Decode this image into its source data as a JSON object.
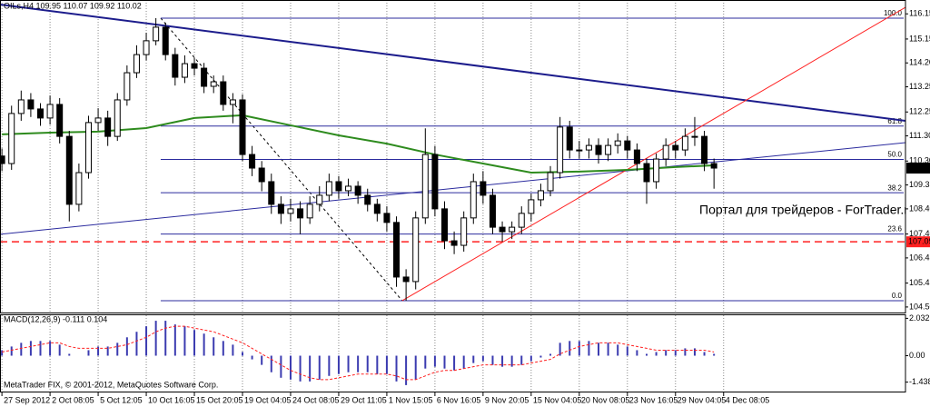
{
  "chart_data": {
    "type": "candlestick",
    "title": "OILs,H4 109.95 110.07 109.92 110.02",
    "xlim": [
      -0.2,
      93.9
    ],
    "xticks": [
      {
        "value": 0,
        "label": "27 Sep 2012"
      },
      {
        "value": 5,
        "label": "2 Oct 08:05"
      },
      {
        "value": 10,
        "label": "5 Oct 12:05"
      },
      {
        "value": 15,
        "label": "10 Oct 16:05"
      },
      {
        "value": 20,
        "label": "15 Oct 20:05"
      },
      {
        "value": 25,
        "label": "19 Oct 04:05"
      },
      {
        "value": 30,
        "label": "24 Oct 08:05"
      },
      {
        "value": 35,
        "label": "29 Oct 11:05"
      },
      {
        "value": 40,
        "label": "1 Nov 15:05"
      },
      {
        "value": 45,
        "label": "6 Nov 16:05"
      },
      {
        "value": 50,
        "label": "9 Nov 20:05"
      },
      {
        "value": 55,
        "label": "15 Nov 04:05"
      },
      {
        "value": 60,
        "label": "20 Nov 08:05"
      },
      {
        "value": 65,
        "label": "23 Nov 16:05"
      },
      {
        "value": 70,
        "label": "29 Nov 04:05"
      },
      {
        "value": 75,
        "label": "4 Dec 08:05"
      }
    ],
    "ylim": [
      104.28,
      116.7
    ],
    "yticks": [
      {
        "value": 104.5,
        "label": "104.50"
      },
      105.45,
      106.45,
      {
        "value": 107.4,
        "label": "107.40"
      },
      {
        "value": 108.4,
        "label": "108.40"
      },
      109.35,
      {
        "value": 110.3,
        "label": "110.30"
      },
      {
        "value": 111.3,
        "label": "111.30"
      },
      112.25,
      113.25,
      {
        "value": 114.2,
        "label": "114.20"
      },
      115.15,
      116.15
    ],
    "open": [
      110.5,
      110.2,
      112.19,
      112.73,
      112.37,
      112.01,
      112.55,
      111.28,
      108.58,
      109.84,
      111.83,
      112.01,
      111.28,
      112.73,
      113.81,
      114.53,
      115.08,
      115.62,
      114.53,
      113.63,
      114.17,
      113.99,
      113.27,
      113.45,
      112.55,
      112.73,
      110.56,
      110.02,
      109.48,
      108.58,
      108.22,
      108.4,
      108.04,
      108.58,
      108.94,
      109.48,
      109.12,
      109.3,
      108.94,
      108.58,
      108.22,
      107.86,
      105.69,
      105.51,
      108.04,
      110.56,
      108.4,
      107.13,
      106.95,
      108.04,
      109.48,
      108.94,
      107.67,
      107.49,
      107.67,
      108.22,
      108.76,
      109.12,
      109.84,
      111.65,
      110.74,
      110.74,
      110.92,
      110.56,
      110.92,
      111.1,
      110.74,
      110.2,
      109.48,
      110.38,
      110.92,
      110.74,
      111.28,
      111.28,
      110.2
    ],
    "high": [
      110.8,
      112.5,
      113.1,
      113.0,
      112.6,
      112.9,
      112.8,
      111.5,
      110.2,
      112.1,
      112.4,
      112.3,
      113.0,
      114.1,
      114.9,
      115.4,
      115.98,
      115.8,
      114.8,
      114.5,
      114.4,
      114.2,
      113.7,
      113.7,
      113.0,
      112.95,
      110.9,
      110.3,
      109.8,
      108.9,
      108.8,
      108.7,
      108.9,
      109.3,
      109.8,
      109.7,
      109.6,
      109.5,
      109.2,
      108.8,
      108.5,
      108.1,
      106.0,
      108.3,
      111.6,
      110.9,
      108.7,
      107.5,
      108.3,
      109.8,
      109.9,
      109.2,
      107.9,
      107.9,
      108.5,
      109.0,
      109.4,
      110.1,
      112.05,
      111.9,
      111.1,
      111.2,
      111.2,
      111.2,
      111.4,
      111.3,
      111.0,
      110.4,
      110.6,
      111.2,
      111.1,
      111.6,
      112.05,
      111.5,
      110.4
    ],
    "low": [
      109.9,
      109.95,
      111.9,
      112.05,
      111.7,
      111.75,
      111.0,
      107.9,
      108.3,
      109.6,
      111.5,
      110.9,
      111.1,
      112.5,
      113.6,
      114.3,
      114.9,
      114.3,
      113.3,
      113.4,
      113.7,
      113.0,
      113.0,
      112.3,
      111.8,
      110.3,
      109.7,
      109.1,
      108.2,
      107.8,
      107.9,
      107.4,
      107.8,
      108.3,
      108.7,
      108.8,
      108.9,
      108.6,
      108.3,
      107.9,
      107.5,
      105.3,
      104.75,
      105.2,
      107.8,
      108.1,
      106.8,
      106.6,
      106.7,
      107.8,
      108.6,
      107.4,
      107.1,
      107.2,
      107.4,
      107.9,
      108.5,
      108.9,
      109.6,
      110.4,
      110.4,
      110.4,
      110.2,
      110.3,
      110.6,
      110.4,
      109.9,
      108.6,
      109.2,
      110.1,
      110.4,
      110.5,
      110.9,
      109.9,
      109.2
    ],
    "close": [
      110.2,
      112.19,
      112.73,
      112.37,
      112.01,
      112.55,
      111.28,
      108.58,
      109.84,
      111.83,
      112.01,
      111.28,
      112.73,
      113.81,
      114.53,
      115.08,
      115.62,
      114.53,
      113.63,
      114.17,
      113.99,
      113.27,
      113.45,
      112.55,
      112.73,
      110.56,
      110.02,
      109.48,
      108.58,
      108.22,
      108.4,
      108.04,
      108.58,
      108.94,
      109.48,
      109.12,
      109.3,
      108.94,
      108.58,
      108.22,
      107.86,
      105.69,
      105.51,
      108.04,
      110.56,
      108.4,
      107.13,
      106.95,
      108.04,
      109.48,
      108.94,
      107.67,
      107.49,
      107.67,
      108.22,
      108.76,
      109.12,
      109.84,
      111.65,
      110.74,
      110.74,
      110.92,
      110.56,
      110.92,
      111.1,
      110.74,
      110.2,
      109.48,
      110.38,
      110.92,
      110.74,
      111.28,
      111.28,
      110.2,
      110.02
    ],
    "candle_color": "#000000",
    "ma": {
      "color": "#2e8b1e",
      "x": [
        0,
        5,
        10,
        15,
        20,
        25,
        30,
        35,
        40,
        45,
        50,
        55,
        60,
        65,
        70,
        74
      ],
      "values": [
        111.36,
        111.43,
        111.47,
        111.61,
        112.01,
        112.12,
        111.72,
        111.32,
        110.99,
        110.56,
        110.2,
        109.84,
        109.88,
        109.95,
        110.06,
        110.13
      ]
    },
    "trendlines": [
      {
        "color": "#1c1c8c",
        "width": 2,
        "x": [
          -0.2,
          93.9
        ],
        "values": [
          116.52,
          111.9
        ]
      },
      {
        "color": "#2b2b9e",
        "width": 1,
        "x": [
          -0.2,
          93.9
        ],
        "values": [
          107.39,
          111.03
        ]
      },
      {
        "color": "#ff2020",
        "width": 1,
        "x": [
          41.6,
          93.9
        ],
        "values": [
          104.75,
          116.41
        ]
      }
    ],
    "fibo": {
      "color": "#2b2b9e",
      "x": [
        16.5,
        41.6
      ],
      "values": [
        115.98,
        104.75
      ],
      "levels": [
        {
          "value": 0,
          "label": "0.0"
        },
        23.6,
        38.2,
        {
          "value": 50,
          "label": "50.0"
        },
        61.8,
        {
          "value": 100,
          "label": "100.0"
        }
      ]
    },
    "current_price": 110.02,
    "alert_level": 107.09,
    "alert_color": "#ff2020",
    "watermark": "Портал для трейдеров - ForTrader.ru",
    "copyright": "MetaTrader FIX, © 2001-2012, MetaQuotes Software Corp.",
    "macd": {
      "title": "MACD(12,26,9) -0.111 0.104",
      "ylim": [
        -2.0,
        2.2
      ],
      "yticks": [
        2.032,
        {
          "value": 0,
          "label": "0.00"
        },
        -1.438
      ],
      "hist_color": "#3b3bb0",
      "signal_color": "#ff2020",
      "histogram": [
        0.3,
        0.5,
        0.7,
        0.8,
        0.8,
        0.8,
        0.6,
        0.1,
        0.0,
        0.3,
        0.5,
        0.5,
        0.7,
        1.0,
        1.3,
        1.6,
        1.9,
        1.9,
        1.7,
        1.6,
        1.4,
        1.2,
        1.0,
        0.8,
        0.6,
        0.2,
        -0.2,
        -0.5,
        -0.9,
        -1.2,
        -1.3,
        -1.4,
        -1.4,
        -1.3,
        -1.1,
        -1.0,
        -0.9,
        -0.9,
        -0.9,
        -1.0,
        -1.0,
        -1.4,
        -1.6,
        -1.3,
        -0.7,
        -0.6,
        -0.7,
        -0.8,
        -0.7,
        -0.4,
        -0.3,
        -0.5,
        -0.6,
        -0.6,
        -0.5,
        -0.3,
        -0.1,
        0.1,
        0.7,
        0.8,
        0.8,
        0.8,
        0.7,
        0.7,
        0.6,
        0.5,
        0.3,
        0.1,
        0.2,
        0.3,
        0.3,
        0.4,
        0.4,
        0.2,
        0.1
      ],
      "signal": [
        0.2,
        0.3,
        0.4,
        0.5,
        0.6,
        0.7,
        0.7,
        0.5,
        0.4,
        0.4,
        0.4,
        0.4,
        0.5,
        0.6,
        0.8,
        1.0,
        1.3,
        1.5,
        1.6,
        1.6,
        1.5,
        1.4,
        1.3,
        1.1,
        0.9,
        0.7,
        0.4,
        0.1,
        -0.2,
        -0.5,
        -0.8,
        -1.0,
        -1.2,
        -1.3,
        -1.3,
        -1.2,
        -1.1,
        -1.0,
        -1.0,
        -1.0,
        -1.0,
        -1.1,
        -1.3,
        -1.3,
        -1.1,
        -0.9,
        -0.8,
        -0.8,
        -0.7,
        -0.6,
        -0.5,
        -0.5,
        -0.5,
        -0.5,
        -0.5,
        -0.4,
        -0.3,
        -0.2,
        0.1,
        0.3,
        0.5,
        0.6,
        0.7,
        0.7,
        0.7,
        0.6,
        0.5,
        0.4,
        0.3,
        0.3,
        0.3,
        0.3,
        0.3,
        0.3,
        0.2
      ]
    }
  }
}
